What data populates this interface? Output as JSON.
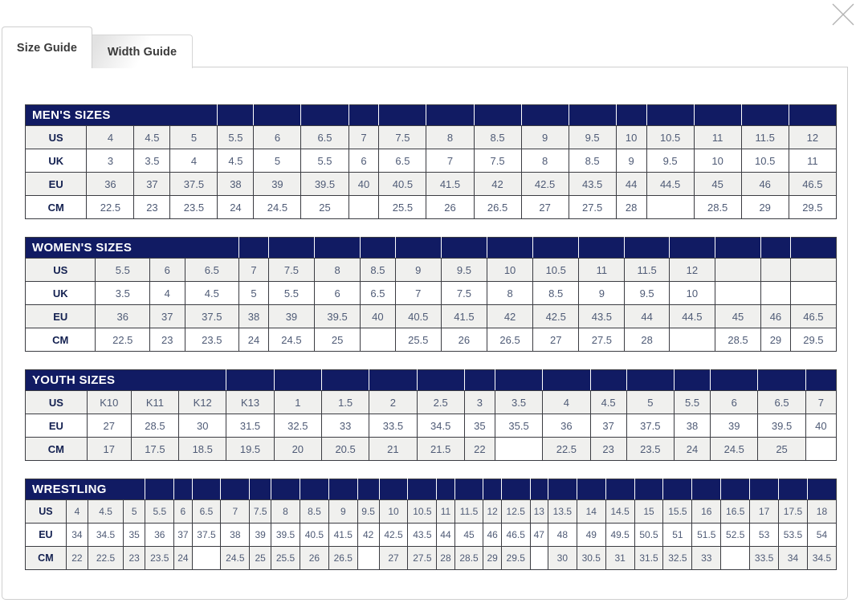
{
  "window": {
    "title": "Size Guide"
  },
  "colors": {
    "header_navy": "#111b63",
    "shaded_row": "#f0f0ee",
    "cell_text": "#4f5b76",
    "label_text": "#132050",
    "table_border": "#3b3c42",
    "modal_border": "#cfcfcf",
    "close_icon_gray": "#b3b3b3"
  },
  "icons": {
    "close": "close-x-icon"
  },
  "tabs": [
    {
      "label": "Size Guide",
      "active": true
    },
    {
      "label": "Width Guide",
      "active": false
    }
  ],
  "tables": [
    {
      "id": "mens",
      "title": "MEN'S SIZES",
      "title_colspan": 4,
      "columns": 17,
      "rows": [
        {
          "label": "US",
          "shaded": true,
          "values": [
            "4",
            "4.5",
            "5",
            "5.5",
            "6",
            "6.5",
            "7",
            "7.5",
            "8",
            "8.5",
            "9",
            "9.5",
            "10",
            "10.5",
            "11",
            "11.5",
            "12"
          ]
        },
        {
          "label": "UK",
          "shaded": false,
          "values": [
            "3",
            "3.5",
            "4",
            "4.5",
            "5",
            "5.5",
            "6",
            "6.5",
            "7",
            "7.5",
            "8",
            "8.5",
            "9",
            "9.5",
            "10",
            "10.5",
            "11"
          ]
        },
        {
          "label": "EU",
          "shaded": true,
          "values": [
            "36",
            "37",
            "37.5",
            "38",
            "39",
            "39.5",
            "40",
            "40.5",
            "41.5",
            "42",
            "42.5",
            "43.5",
            "44",
            "44.5",
            "45",
            "46",
            "46.5"
          ]
        },
        {
          "label": "CM",
          "shaded": false,
          "values": [
            "22.5",
            "23",
            "23.5",
            "24",
            "24.5",
            "25",
            "",
            "25.5",
            "26",
            "26.5",
            "27",
            "27.5",
            "28",
            "",
            "28.5",
            "29",
            "29.5"
          ]
        }
      ]
    },
    {
      "id": "womens",
      "title": "WOMEN'S SIZES",
      "title_colspan": 4,
      "columns": 17,
      "rows": [
        {
          "label": "US",
          "shaded": true,
          "values": [
            "5.5",
            "6",
            "6.5",
            "7",
            "7.5",
            "8",
            "8.5",
            "9",
            "9.5",
            "10",
            "10.5",
            "11",
            "11.5",
            "12",
            "",
            "",
            ""
          ]
        },
        {
          "label": "UK",
          "shaded": false,
          "values": [
            "3.5",
            "4",
            "4.5",
            "5",
            "5.5",
            "6",
            "6.5",
            "7",
            "7.5",
            "8",
            "8.5",
            "9",
            "9.5",
            "10",
            "",
            "",
            ""
          ]
        },
        {
          "label": "EU",
          "shaded": true,
          "values": [
            "36",
            "37",
            "37.5",
            "38",
            "39",
            "39.5",
            "40",
            "40.5",
            "41.5",
            "42",
            "42.5",
            "43.5",
            "44",
            "44.5",
            "45",
            "46",
            "46.5"
          ]
        },
        {
          "label": "CM",
          "shaded": false,
          "values": [
            "22.5",
            "23",
            "23.5",
            "24",
            "24.5",
            "25",
            "",
            "25.5",
            "26",
            "26.5",
            "27",
            "27.5",
            "28",
            "",
            "28.5",
            "29",
            "29.5"
          ]
        }
      ]
    },
    {
      "id": "youth",
      "title": "YOUTH SIZES",
      "title_colspan": 4,
      "columns": 17,
      "rows": [
        {
          "label": "US",
          "shaded": true,
          "values": [
            "K10",
            "K11",
            "K12",
            "K13",
            "1",
            "1.5",
            "2",
            "2.5",
            "3",
            "3.5",
            "4",
            "4.5",
            "5",
            "5.5",
            "6",
            "6.5",
            "7"
          ]
        },
        {
          "label": "EU",
          "shaded": false,
          "values": [
            "27",
            "28.5",
            "30",
            "31.5",
            "32.5",
            "33",
            "33.5",
            "34.5",
            "35",
            "35.5",
            "36",
            "37",
            "37.5",
            "38",
            "39",
            "39.5",
            "40"
          ]
        },
        {
          "label": "CM",
          "shaded": true,
          "values": [
            "17",
            "17.5",
            "18.5",
            "19.5",
            "20",
            "20.5",
            "21",
            "21.5",
            "22",
            null,
            "22.5",
            "23",
            "23.5",
            "24",
            "24.5",
            "25",
            null
          ]
        }
      ]
    },
    {
      "id": "wrestling",
      "title": "WRESTLING",
      "title_colspan": 4,
      "columns": 29,
      "rows": [
        {
          "label": "US",
          "shaded": true,
          "values": [
            "4",
            "4.5",
            "5",
            "5.5",
            "6",
            "6.5",
            "7",
            "7.5",
            "8",
            "8.5",
            "9",
            "9.5",
            "10",
            "10.5",
            "11",
            "11.5",
            "12",
            "12.5",
            "13",
            "13.5",
            "14",
            "14.5",
            "15",
            "15.5",
            "16",
            "16.5",
            "17",
            "17.5",
            "18"
          ]
        },
        {
          "label": "EU",
          "shaded": false,
          "values": [
            "34",
            "34.5",
            "35",
            "36",
            "37",
            "37.5",
            "38",
            "39",
            "39.5",
            "40.5",
            "41.5",
            "42",
            "42.5",
            "43.5",
            "44",
            "45",
            "46",
            "46.5",
            "47",
            "48",
            "49",
            "49.5",
            "50.5",
            "51",
            "51.5",
            "52.5",
            "53",
            "53.5",
            "54"
          ]
        },
        {
          "label": "CM",
          "shaded": true,
          "values": [
            "22",
            "22.5",
            "23",
            "23.5",
            "24",
            null,
            "24.5",
            "25",
            "25.5",
            "26",
            "26.5",
            null,
            "27",
            "27.5",
            "28",
            "28.5",
            "29",
            "29.5",
            null,
            "30",
            "30.5",
            "31",
            "31.5",
            "32.5",
            "33",
            null,
            "33.5",
            "34",
            "34.5"
          ]
        }
      ]
    }
  ]
}
